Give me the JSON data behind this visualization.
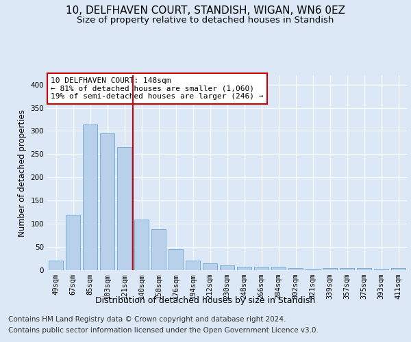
{
  "title": "10, DELFHAVEN COURT, STANDISH, WIGAN, WN6 0EZ",
  "subtitle": "Size of property relative to detached houses in Standish",
  "xlabel": "Distribution of detached houses by size in Standish",
  "ylabel": "Number of detached properties",
  "categories": [
    "49sqm",
    "67sqm",
    "85sqm",
    "103sqm",
    "121sqm",
    "140sqm",
    "158sqm",
    "176sqm",
    "194sqm",
    "212sqm",
    "230sqm",
    "248sqm",
    "266sqm",
    "284sqm",
    "302sqm",
    "321sqm",
    "339sqm",
    "357sqm",
    "375sqm",
    "393sqm",
    "411sqm"
  ],
  "values": [
    20,
    119,
    314,
    295,
    265,
    109,
    88,
    45,
    21,
    15,
    10,
    8,
    7,
    7,
    5,
    3,
    4,
    4,
    4,
    3,
    4
  ],
  "bar_color": "#b8d0ea",
  "bar_edge_color": "#6aaad4",
  "highlight_color": "#cc0000",
  "annotation_text": "10 DELFHAVEN COURT: 148sqm\n← 81% of detached houses are smaller (1,060)\n19% of semi-detached houses are larger (246) →",
  "annotation_box_color": "#ffffff",
  "annotation_box_edge_color": "#cc0000",
  "bg_color": "#dce8f5",
  "plot_bg_color": "#dce8f5",
  "footer_line1": "Contains HM Land Registry data © Crown copyright and database right 2024.",
  "footer_line2": "Contains public sector information licensed under the Open Government Licence v3.0.",
  "title_fontsize": 11,
  "subtitle_fontsize": 9.5,
  "ylabel_fontsize": 8.5,
  "xlabel_fontsize": 9,
  "tick_fontsize": 7.5,
  "annotation_fontsize": 8,
  "footer_fontsize": 7.5,
  "ylim": [
    0,
    420
  ],
  "yticks": [
    0,
    50,
    100,
    150,
    200,
    250,
    300,
    350,
    400
  ]
}
